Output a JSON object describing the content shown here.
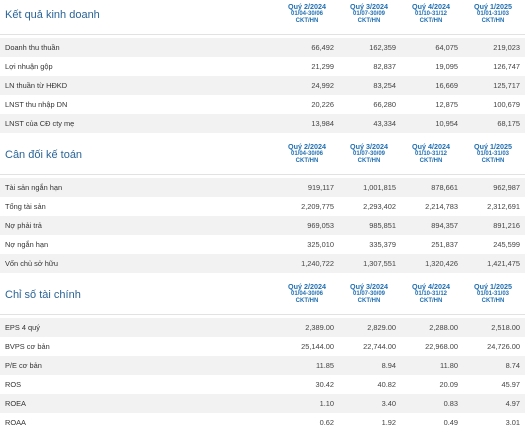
{
  "sections": [
    {
      "title": "Kết quả kinh doanh",
      "columns": [
        {
          "quarter": "Quý 2/2024",
          "dates": "01/04-30/06",
          "type": "CKT/HN"
        },
        {
          "quarter": "Quý 3/2024",
          "dates": "01/07-30/09",
          "type": "CKT/HN"
        },
        {
          "quarter": "Quý 4/2024",
          "dates": "01/10-31/12",
          "type": "CKT/HN"
        },
        {
          "quarter": "Quý 1/2025",
          "dates": "01/01-31/03",
          "type": "CKT/HN"
        }
      ],
      "rows": [
        {
          "label": "Doanh thu thuần",
          "values": [
            "66,492",
            "162,359",
            "64,075",
            "219,023"
          ]
        },
        {
          "label": "Lợi nhuận gộp",
          "values": [
            "21,299",
            "82,837",
            "19,095",
            "126,747"
          ]
        },
        {
          "label": "LN thuần từ HĐKD",
          "values": [
            "24,992",
            "83,254",
            "16,669",
            "125,717"
          ]
        },
        {
          "label": "LNST thu nhập DN",
          "values": [
            "20,226",
            "66,280",
            "12,875",
            "100,679"
          ]
        },
        {
          "label": "LNST của CĐ cty mẹ",
          "values": [
            "13,984",
            "43,334",
            "10,954",
            "68,175"
          ]
        }
      ]
    },
    {
      "title": "Cân đối kế toán",
      "columns": [
        {
          "quarter": "Quý 2/2024",
          "dates": "01/04-30/06",
          "type": "CKT/HN"
        },
        {
          "quarter": "Quý 3/2024",
          "dates": "01/07-30/09",
          "type": "CKT/HN"
        },
        {
          "quarter": "Quý 4/2024",
          "dates": "01/10-31/12",
          "type": "CKT/HN"
        },
        {
          "quarter": "Quý 1/2025",
          "dates": "01/01-31/03",
          "type": "CKT/HN"
        }
      ],
      "rows": [
        {
          "label": "Tài sản ngắn hạn",
          "values": [
            "919,117",
            "1,001,815",
            "878,661",
            "962,987"
          ]
        },
        {
          "label": "Tổng tài sản",
          "values": [
            "2,209,775",
            "2,293,402",
            "2,214,783",
            "2,312,691"
          ]
        },
        {
          "label": "Nợ phải trả",
          "values": [
            "969,053",
            "985,851",
            "894,357",
            "891,216"
          ]
        },
        {
          "label": "Nợ ngắn hạn",
          "values": [
            "325,010",
            "335,379",
            "251,837",
            "245,599"
          ]
        },
        {
          "label": "Vốn chủ sở hữu",
          "values": [
            "1,240,722",
            "1,307,551",
            "1,320,426",
            "1,421,475"
          ]
        }
      ]
    },
    {
      "title": "Chỉ số tài chính",
      "columns": [
        {
          "quarter": "Quý 2/2024",
          "dates": "01/04-30/06",
          "type": "CKT/HN"
        },
        {
          "quarter": "Quý 3/2024",
          "dates": "01/07-30/09",
          "type": "CKT/HN"
        },
        {
          "quarter": "Quý 4/2024",
          "dates": "01/10-31/12",
          "type": "CKT/HN"
        },
        {
          "quarter": "Quý 1/2025",
          "dates": "01/01-31/03",
          "type": "CKT/HN"
        }
      ],
      "rows": [
        {
          "label": "EPS 4 quý",
          "values": [
            "2,389.00",
            "2,829.00",
            "2,288.00",
            "2,518.00"
          ]
        },
        {
          "label": "BVPS cơ bản",
          "values": [
            "25,144.00",
            "22,744.00",
            "22,968.00",
            "24,726.00"
          ]
        },
        {
          "label": "P/E cơ bản",
          "values": [
            "11.85",
            "8.94",
            "11.80",
            "8.74"
          ]
        },
        {
          "label": "ROS",
          "values": [
            "30.42",
            "40.82",
            "20.09",
            "45.97"
          ]
        },
        {
          "label": "ROEA",
          "values": [
            "1.10",
            "3.40",
            "0.83",
            "4.97"
          ]
        },
        {
          "label": "ROAA",
          "values": [
            "0.62",
            "1.92",
            "0.49",
            "3.01"
          ]
        }
      ]
    }
  ],
  "colors": {
    "header_text": "#1f6fb2",
    "title_text": "#2a6496",
    "row_alt": "#f2f2f2",
    "divider": "#e2e2e2"
  }
}
